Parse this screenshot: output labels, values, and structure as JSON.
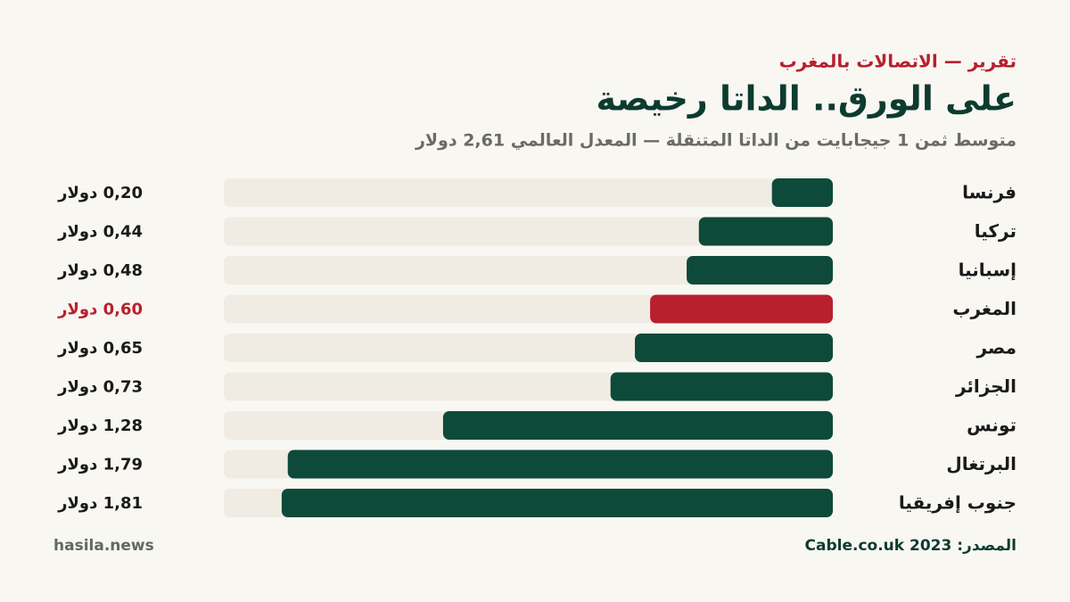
{
  "chart_data": {
    "type": "bar",
    "orientation": "horizontal",
    "kicker": "تقرير — الاتصالات بالمغرب",
    "title": "على الورق.. الداتا رخيصة",
    "subtitle": "متوسط ثمن 1 جيجابايت من الداتا المتنقلة — المعدل العالمي 2,61 دولار",
    "categories": [
      "فرنسا",
      "تركيا",
      "إسبانيا",
      "المغرب",
      "مصر",
      "الجزائر",
      "تونس",
      "البرتغال",
      "جنوب إفريقيا"
    ],
    "values": [
      0.2,
      0.44,
      0.48,
      0.6,
      0.65,
      0.73,
      1.28,
      1.79,
      1.81
    ],
    "value_labels": [
      "0,20 دولار",
      "0,44 دولار",
      "0,48 دولار",
      "0,60 دولار",
      "0,65 دولار",
      "0,73 دولار",
      "1,28 دولار",
      "1,79 دولار",
      "1,81 دولار"
    ],
    "colors": [
      "#0d4a3a",
      "#0d4a3a",
      "#0d4a3a",
      "#b8202e",
      "#0d4a3a",
      "#0d4a3a",
      "#0d4a3a",
      "#0d4a3a",
      "#0d4a3a"
    ],
    "xlim": [
      0,
      2
    ],
    "source": "المصدر: Cable.co.uk 2023",
    "brand": "hasila.news"
  }
}
